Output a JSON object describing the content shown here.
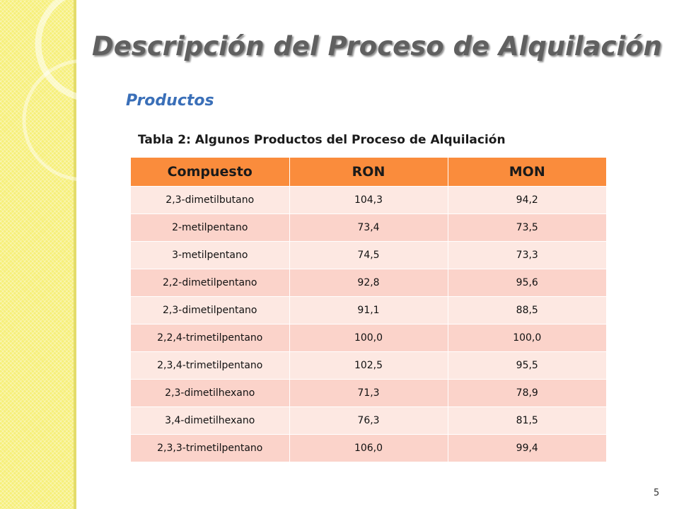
{
  "slide": {
    "title": "Descripción del Proceso de Alquilación",
    "subtitle": "Productos",
    "caption": "Tabla 2:  Algunos Productos del Proceso de Alquilación",
    "page_number": "5"
  },
  "table": {
    "headers": [
      "Compuesto",
      "RON",
      "MON"
    ],
    "rows": [
      [
        "2,3-dimetilbutano",
        "104,3",
        "94,2"
      ],
      [
        "2-metilpentano",
        "73,4",
        "73,5"
      ],
      [
        "3-metilpentano",
        "74,5",
        "73,3"
      ],
      [
        "2,2-dimetilpentano",
        "92,8",
        "95,6"
      ],
      [
        "2,3-dimetilpentano",
        "91,1",
        "88,5"
      ],
      [
        "2,2,4-trimetilpentano",
        "100,0",
        "100,0"
      ],
      [
        "2,3,4-trimetilpentano",
        "102,5",
        "95,5"
      ],
      [
        "2,3-dimetilhexano",
        "71,3",
        "78,9"
      ],
      [
        "3,4-dimetilhexano",
        "76,3",
        "81,5"
      ],
      [
        "2,3,3-trimetilpentano",
        "106,0",
        "99,4"
      ]
    ]
  },
  "colors": {
    "header_orange": "#fa8c3c",
    "row_light": "#fde8e2",
    "row_dark": "#fbd3ca",
    "side_yellow": "#f6ef7a",
    "subtitle_blue": "#3a6fb8"
  }
}
